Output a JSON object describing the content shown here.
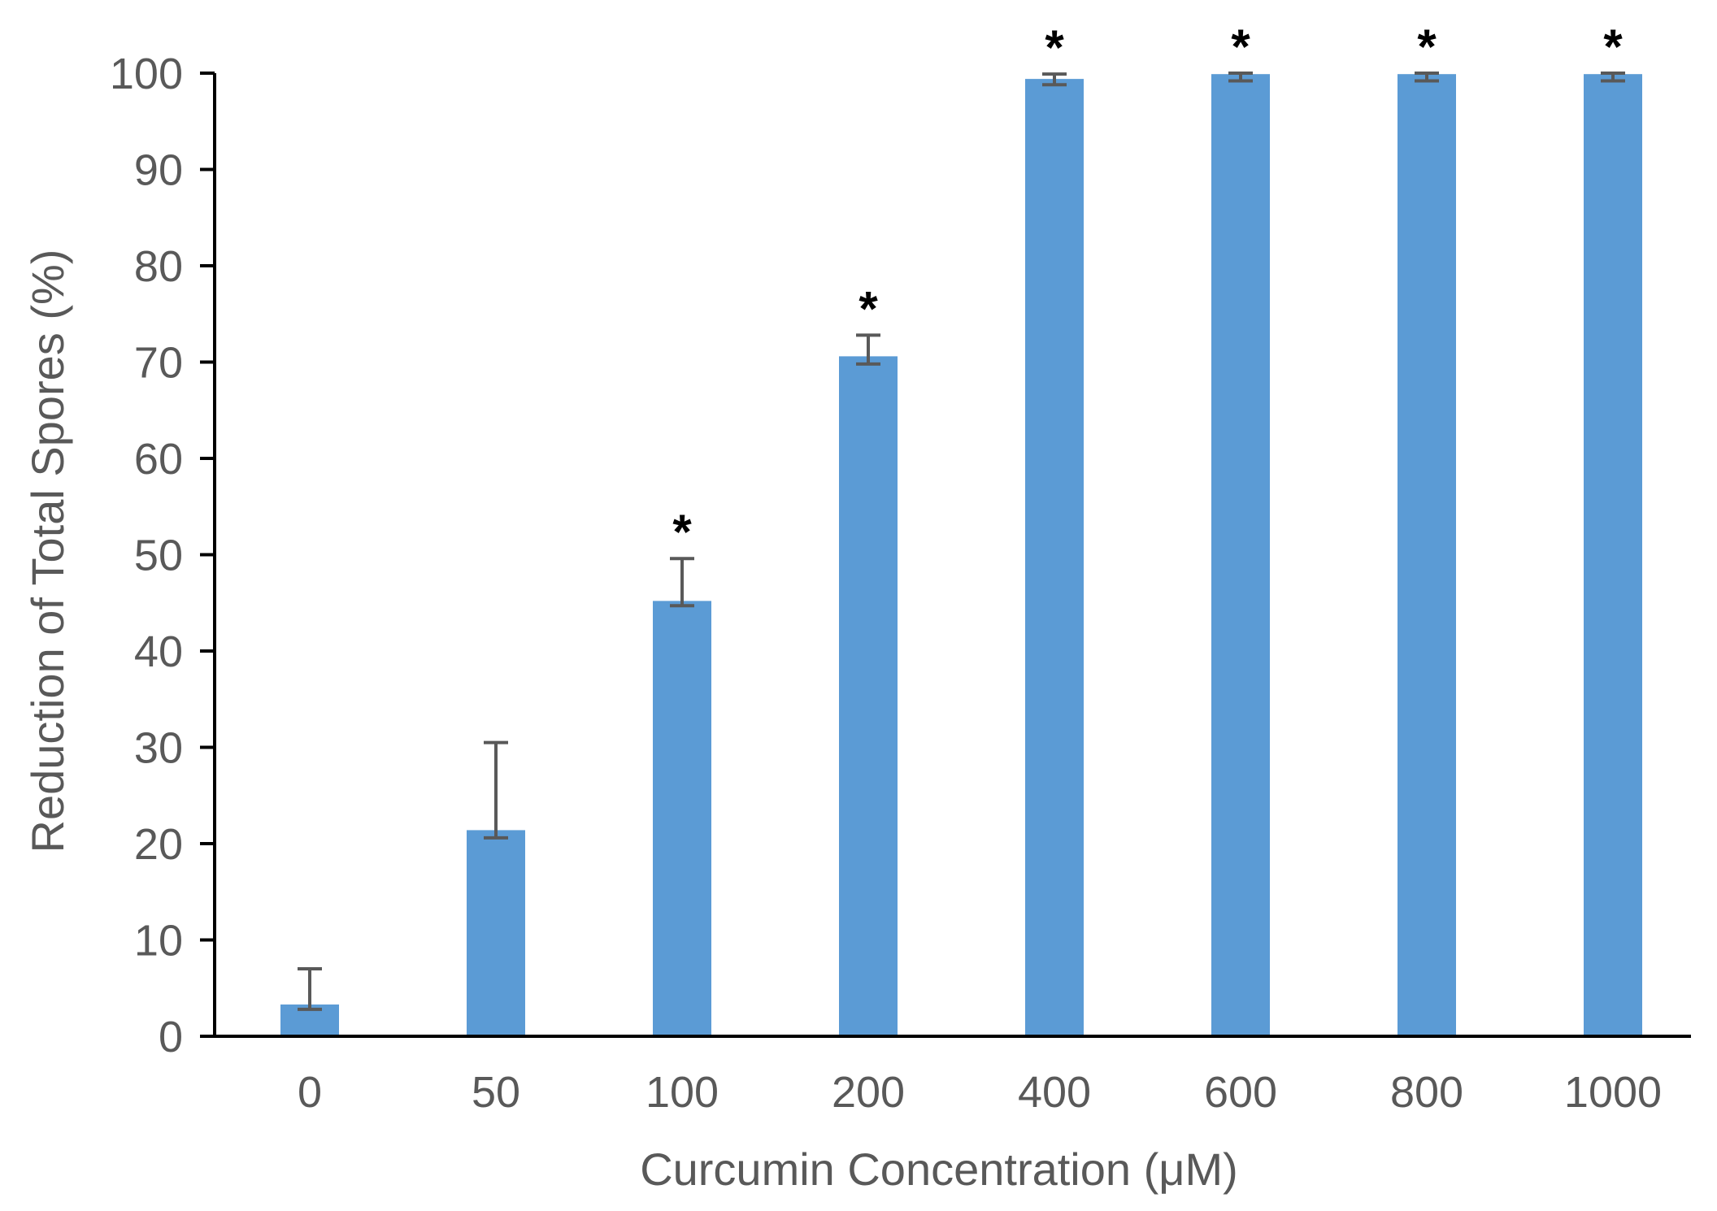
{
  "chart_data": {
    "type": "bar",
    "title": "",
    "xlabel": "Curcumin Concentration (μM)",
    "ylabel": "Reduction of Total Spores (%)",
    "ylim": [
      0,
      100
    ],
    "yticks": [
      "0",
      "10",
      "20",
      "30",
      "40",
      "50",
      "60",
      "70",
      "80",
      "90",
      "100"
    ],
    "categories": [
      "0",
      "50",
      "100",
      "200",
      "400",
      "600",
      "800",
      "1000"
    ],
    "values": [
      3.3,
      21.4,
      45.2,
      70.6,
      99.4,
      99.9,
      99.9,
      99.9
    ],
    "error_upper": [
      7.0,
      30.5,
      49.6,
      72.8,
      99.9,
      100.0,
      100.0,
      100.0
    ],
    "error_lower": [
      2.8,
      20.6,
      44.7,
      69.8,
      98.8,
      99.2,
      99.2,
      99.2
    ],
    "significance": [
      "",
      "",
      "*",
      "*",
      "*",
      "*",
      "*",
      "*"
    ],
    "grid": false,
    "legend": "none",
    "colors": {
      "bar": "#5b9bd5",
      "axis": "#000000",
      "errorbar": "#595959",
      "text": "#595959"
    }
  }
}
